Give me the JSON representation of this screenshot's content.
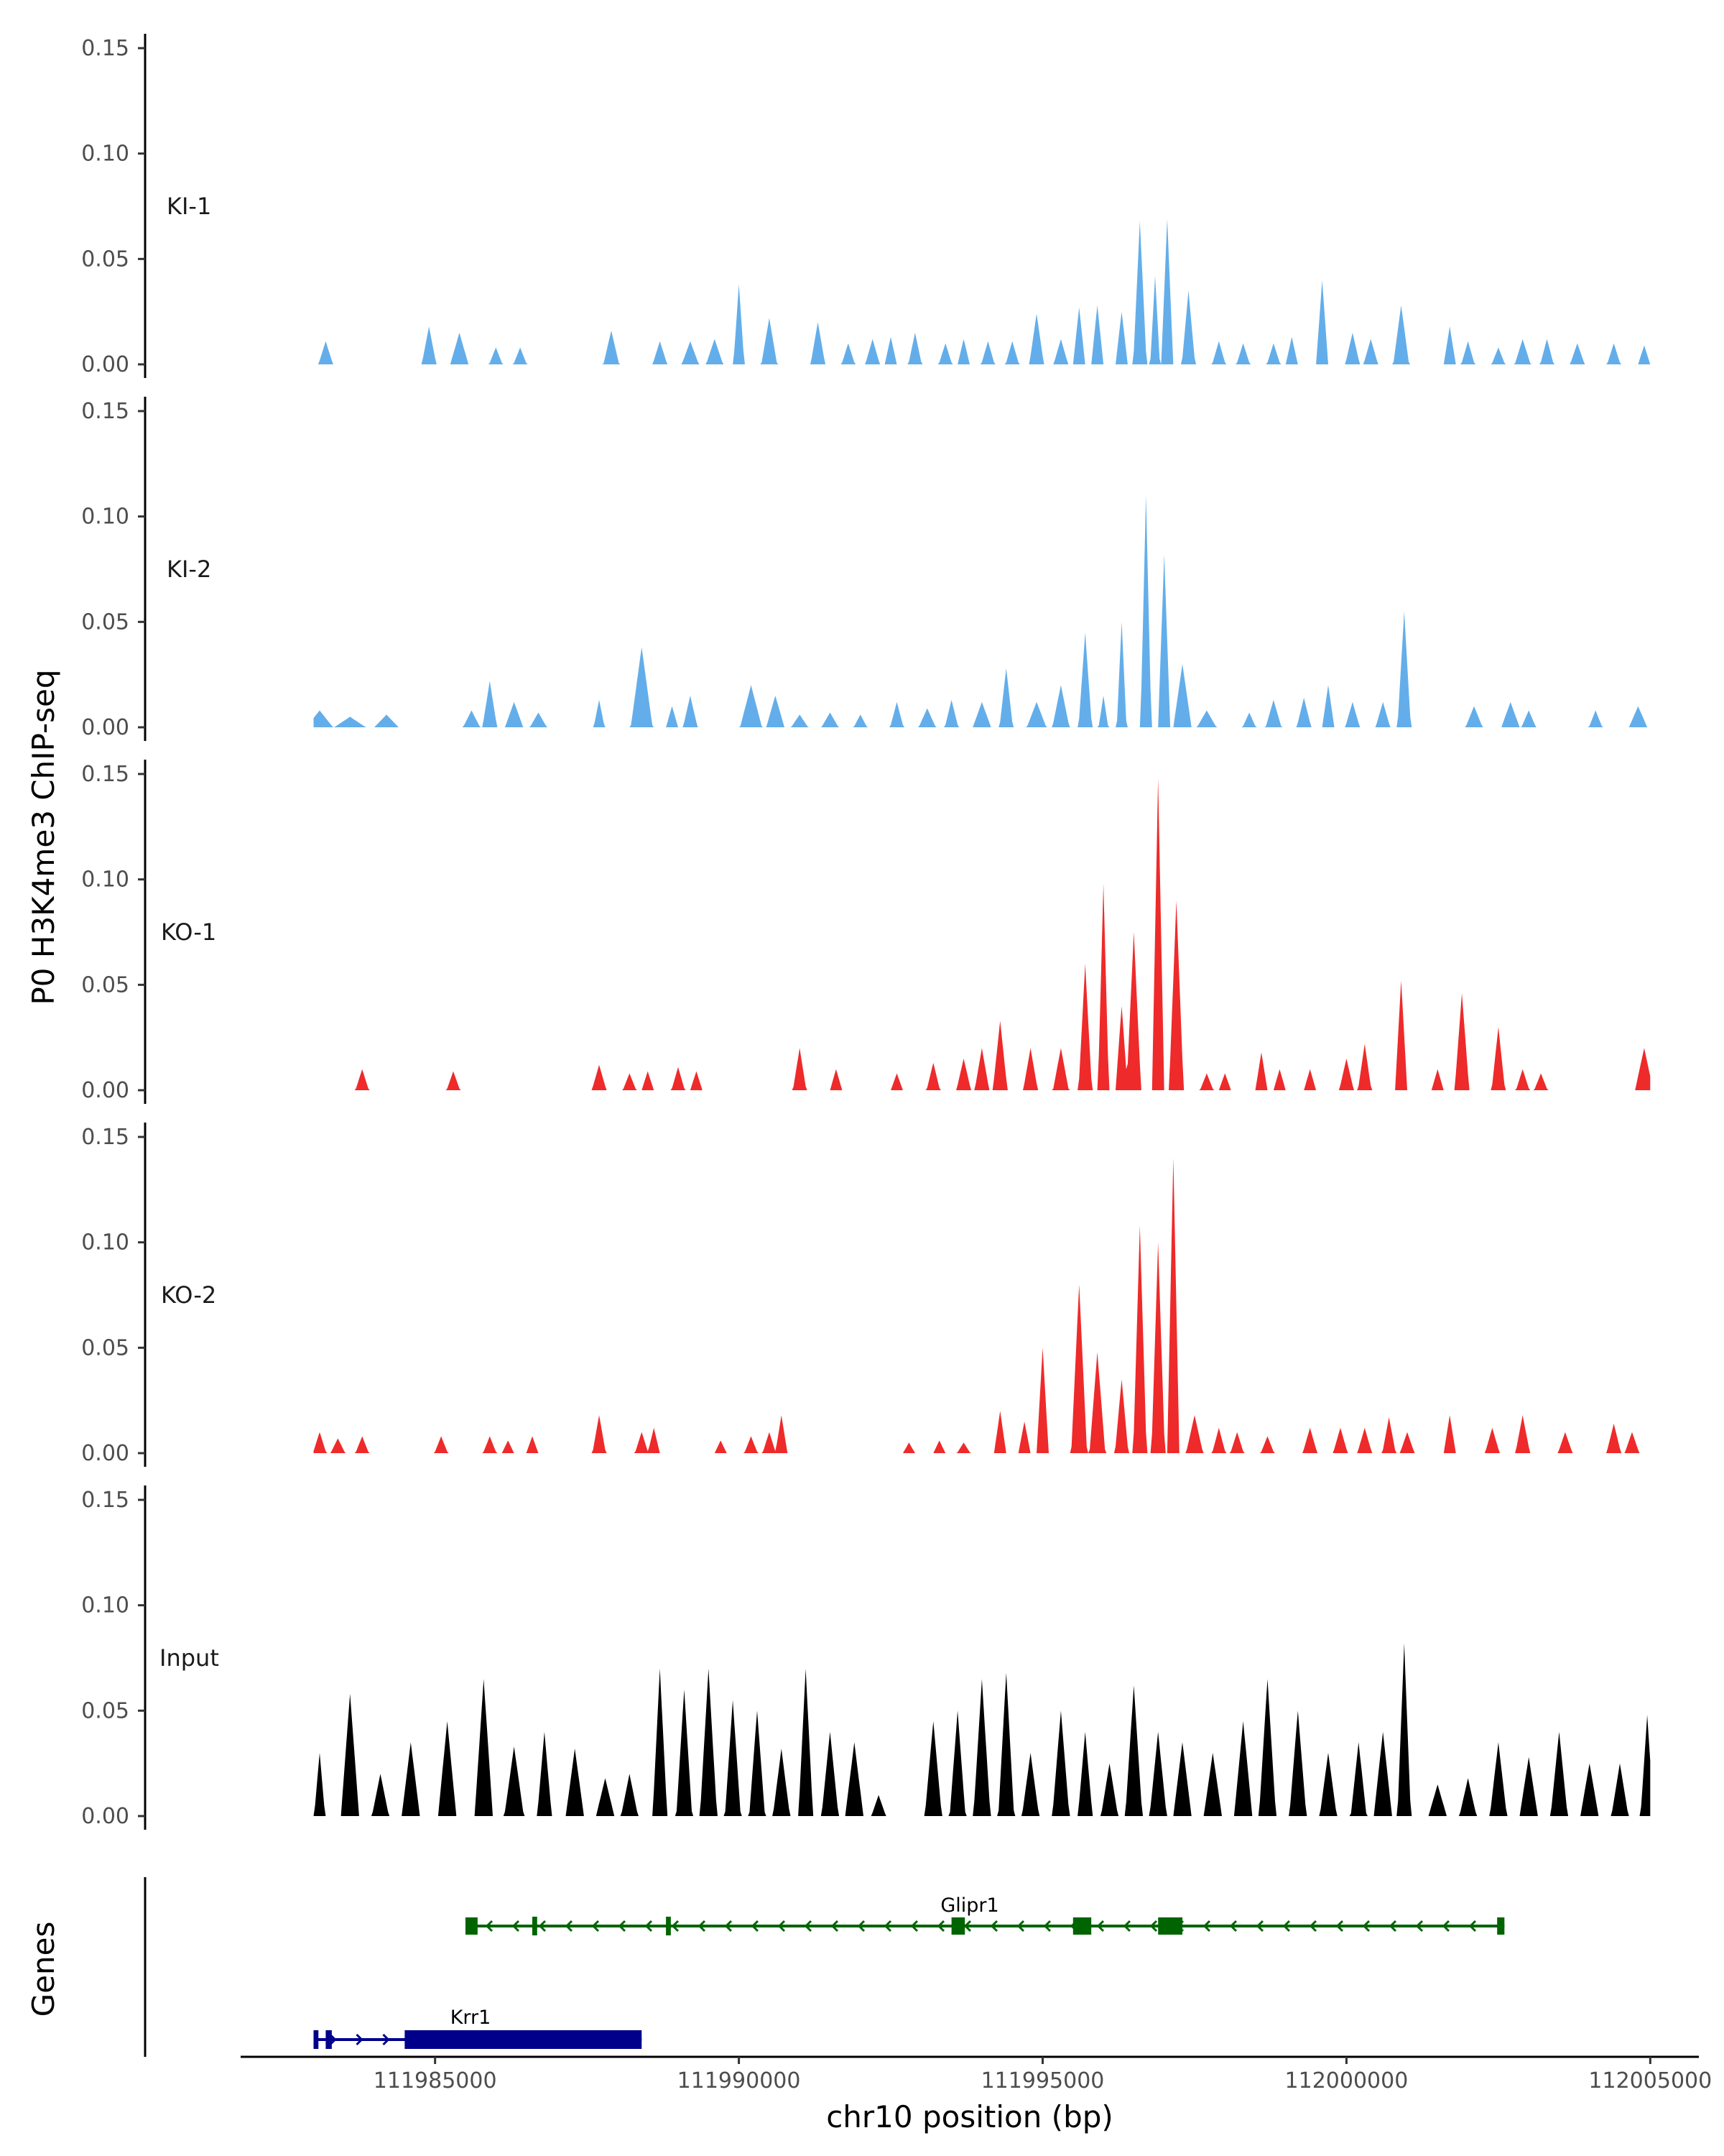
{
  "chart_data": {
    "type": "area",
    "ylabel": "P0 H3K4me3 ChIP-seq",
    "xlabel": "chr10 position (bp)",
    "xlim": [
      111981800,
      112005800
    ],
    "ylim": [
      0,
      0.15
    ],
    "y_ticks": [
      "0.00",
      "0.05",
      "0.10",
      "0.15"
    ],
    "x_ticks": [
      {
        "value": 111985000,
        "label": "111985000"
      },
      {
        "value": 111990000,
        "label": "111990000"
      },
      {
        "value": 111995000,
        "label": "111995000"
      },
      {
        "value": 112000000,
        "label": "112000000"
      },
      {
        "value": 112005000,
        "label": "112005000"
      }
    ],
    "series": [
      {
        "name": "KI-1",
        "color": "#63aeea",
        "peaks": [
          [
            111983200,
            0.011,
            120
          ],
          [
            111984900,
            0.018,
            120
          ],
          [
            111985400,
            0.015,
            150
          ],
          [
            111986000,
            0.008,
            110
          ],
          [
            111986400,
            0.008,
            110
          ],
          [
            111987900,
            0.016,
            130
          ],
          [
            111988700,
            0.011,
            120
          ],
          [
            111989200,
            0.011,
            140
          ],
          [
            111989600,
            0.012,
            140
          ],
          [
            111990000,
            0.038,
            90
          ],
          [
            111990500,
            0.022,
            130
          ],
          [
            111991300,
            0.02,
            120
          ],
          [
            111991800,
            0.01,
            110
          ],
          [
            111992200,
            0.012,
            120
          ],
          [
            111992500,
            0.013,
            100
          ],
          [
            111992900,
            0.015,
            110
          ],
          [
            111993400,
            0.01,
            110
          ],
          [
            111993700,
            0.012,
            100
          ],
          [
            111994100,
            0.011,
            110
          ],
          [
            111994500,
            0.011,
            110
          ],
          [
            111994900,
            0.024,
            120
          ],
          [
            111995300,
            0.012,
            120
          ],
          [
            111995600,
            0.027,
            100
          ],
          [
            111995900,
            0.028,
            100
          ],
          [
            111996300,
            0.025,
            100
          ],
          [
            111996600,
            0.068,
            110
          ],
          [
            111996850,
            0.042,
            80
          ],
          [
            111997050,
            0.069,
            100
          ],
          [
            111997400,
            0.035,
            110
          ],
          [
            111997900,
            0.011,
            110
          ],
          [
            111998300,
            0.01,
            110
          ],
          [
            111998800,
            0.01,
            110
          ],
          [
            111999100,
            0.013,
            100
          ],
          [
            111999600,
            0.04,
            100
          ],
          [
            112000100,
            0.015,
            120
          ],
          [
            112000400,
            0.012,
            120
          ],
          [
            112000900,
            0.028,
            130
          ],
          [
            112001700,
            0.018,
            100
          ],
          [
            112002000,
            0.011,
            110
          ],
          [
            112002500,
            0.008,
            110
          ],
          [
            112002900,
            0.012,
            130
          ],
          [
            112003300,
            0.012,
            110
          ],
          [
            112003800,
            0.01,
            120
          ],
          [
            112004400,
            0.01,
            110
          ],
          [
            112004900,
            0.009,
            100
          ]
        ]
      },
      {
        "name": "KI-2",
        "color": "#63aeea",
        "peaks": [
          [
            111983100,
            0.008,
            220
          ],
          [
            111983600,
            0.005,
            260
          ],
          [
            111984200,
            0.006,
            200
          ],
          [
            111985600,
            0.008,
            140
          ],
          [
            111985900,
            0.022,
            120
          ],
          [
            111986300,
            0.012,
            150
          ],
          [
            111986700,
            0.007,
            140
          ],
          [
            111987700,
            0.013,
            90
          ],
          [
            111988400,
            0.038,
            180
          ],
          [
            111988900,
            0.01,
            100
          ],
          [
            111989200,
            0.015,
            120
          ],
          [
            111990200,
            0.02,
            180
          ],
          [
            111990600,
            0.015,
            150
          ],
          [
            111991000,
            0.006,
            140
          ],
          [
            111991500,
            0.007,
            140
          ],
          [
            111992000,
            0.006,
            110
          ],
          [
            111992600,
            0.012,
            110
          ],
          [
            111993100,
            0.009,
            140
          ],
          [
            111993500,
            0.013,
            110
          ],
          [
            111994000,
            0.012,
            150
          ],
          [
            111994400,
            0.028,
            110
          ],
          [
            111994900,
            0.012,
            160
          ],
          [
            111995300,
            0.02,
            140
          ],
          [
            111995700,
            0.045,
            110
          ],
          [
            111996000,
            0.015,
            80
          ],
          [
            111996300,
            0.05,
            80
          ],
          [
            111996700,
            0.11,
            90
          ],
          [
            111997000,
            0.082,
            100
          ],
          [
            111997300,
            0.03,
            150
          ],
          [
            111997700,
            0.008,
            160
          ],
          [
            111998400,
            0.007,
            110
          ],
          [
            111998800,
            0.013,
            130
          ],
          [
            111999300,
            0.014,
            120
          ],
          [
            111999700,
            0.02,
            100
          ],
          [
            112000100,
            0.012,
            120
          ],
          [
            112000600,
            0.012,
            120
          ],
          [
            112000950,
            0.055,
            110
          ],
          [
            112002100,
            0.01,
            140
          ],
          [
            112002700,
            0.012,
            150
          ],
          [
            112003000,
            0.008,
            120
          ],
          [
            112004100,
            0.008,
            110
          ],
          [
            112004800,
            0.01,
            150
          ]
        ]
      },
      {
        "name": "KO-1",
        "color": "#ee2a2a",
        "peaks": [
          [
            111983800,
            0.01,
            110
          ],
          [
            111985300,
            0.009,
            110
          ],
          [
            111987700,
            0.012,
            120
          ],
          [
            111988200,
            0.008,
            110
          ],
          [
            111988500,
            0.009,
            100
          ],
          [
            111989000,
            0.011,
            110
          ],
          [
            111989300,
            0.009,
            100
          ],
          [
            111991000,
            0.02,
            110
          ],
          [
            111991600,
            0.01,
            100
          ],
          [
            111992600,
            0.008,
            100
          ],
          [
            111993200,
            0.013,
            110
          ],
          [
            111993700,
            0.015,
            120
          ],
          [
            111994000,
            0.02,
            120
          ],
          [
            111994300,
            0.033,
            120
          ],
          [
            111994800,
            0.02,
            120
          ],
          [
            111995300,
            0.02,
            130
          ],
          [
            111995700,
            0.06,
            110
          ],
          [
            111996000,
            0.098,
            90
          ],
          [
            111996300,
            0.04,
            100
          ],
          [
            111996500,
            0.075,
            120
          ],
          [
            111996900,
            0.148,
            100
          ],
          [
            111997200,
            0.09,
            120
          ],
          [
            111997700,
            0.008,
            110
          ],
          [
            111998000,
            0.008,
            100
          ],
          [
            111998600,
            0.018,
            100
          ],
          [
            111998900,
            0.01,
            100
          ],
          [
            111999400,
            0.01,
            100
          ],
          [
            112000000,
            0.015,
            120
          ],
          [
            112000300,
            0.022,
            110
          ],
          [
            112000900,
            0.052,
            100
          ],
          [
            112001500,
            0.01,
            100
          ],
          [
            112001900,
            0.046,
            120
          ],
          [
            112002500,
            0.03,
            110
          ],
          [
            112002900,
            0.01,
            110
          ],
          [
            112003200,
            0.008,
            110
          ],
          [
            112004900,
            0.02,
            150
          ]
        ]
      },
      {
        "name": "KO-2",
        "color": "#ee2a2a",
        "peaks": [
          [
            111983100,
            0.01,
            110
          ],
          [
            111983400,
            0.007,
            120
          ],
          [
            111983800,
            0.008,
            110
          ],
          [
            111985100,
            0.008,
            110
          ],
          [
            111985900,
            0.008,
            110
          ],
          [
            111986200,
            0.006,
            100
          ],
          [
            111986600,
            0.008,
            100
          ],
          [
            111987700,
            0.018,
            110
          ],
          [
            111988400,
            0.01,
            110
          ],
          [
            111988600,
            0.012,
            100
          ],
          [
            111989700,
            0.006,
            100
          ],
          [
            111990200,
            0.008,
            110
          ],
          [
            111990500,
            0.01,
            110
          ],
          [
            111990700,
            0.018,
            100
          ],
          [
            111992800,
            0.005,
            100
          ],
          [
            111993300,
            0.006,
            100
          ],
          [
            111993700,
            0.005,
            110
          ],
          [
            111994300,
            0.02,
            100
          ],
          [
            111994700,
            0.015,
            100
          ],
          [
            111995000,
            0.05,
            100
          ],
          [
            111995600,
            0.08,
            130
          ],
          [
            111995900,
            0.048,
            130
          ],
          [
            111996300,
            0.035,
            110
          ],
          [
            111996600,
            0.108,
            110
          ],
          [
            111996900,
            0.1,
            110
          ],
          [
            111997150,
            0.14,
            100
          ],
          [
            111997500,
            0.018,
            140
          ],
          [
            111997900,
            0.012,
            110
          ],
          [
            111998200,
            0.01,
            110
          ],
          [
            111998700,
            0.008,
            110
          ],
          [
            111999400,
            0.012,
            120
          ],
          [
            111999900,
            0.012,
            120
          ],
          [
            112000300,
            0.012,
            120
          ],
          [
            112000700,
            0.017,
            110
          ],
          [
            112001000,
            0.01,
            120
          ],
          [
            112001700,
            0.018,
            100
          ],
          [
            112002400,
            0.012,
            120
          ],
          [
            112002900,
            0.018,
            120
          ],
          [
            112003600,
            0.01,
            120
          ],
          [
            112004400,
            0.014,
            120
          ],
          [
            112004700,
            0.01,
            120
          ]
        ]
      },
      {
        "name": "Input",
        "color": "#000000",
        "peaks": [
          [
            111983100,
            0.03,
            90
          ],
          [
            111983600,
            0.058,
            150
          ],
          [
            111984100,
            0.02,
            140
          ],
          [
            111984600,
            0.035,
            150
          ],
          [
            111985200,
            0.045,
            150
          ],
          [
            111985800,
            0.065,
            150
          ],
          [
            111986300,
            0.033,
            160
          ],
          [
            111986800,
            0.04,
            120
          ],
          [
            111987300,
            0.032,
            150
          ],
          [
            111987800,
            0.018,
            150
          ],
          [
            111988200,
            0.02,
            140
          ],
          [
            111988700,
            0.07,
            120
          ],
          [
            111989100,
            0.06,
            130
          ],
          [
            111989500,
            0.07,
            140
          ],
          [
            111989900,
            0.055,
            130
          ],
          [
            111990300,
            0.05,
            130
          ],
          [
            111990700,
            0.032,
            140
          ],
          [
            111991100,
            0.07,
            120
          ],
          [
            111991500,
            0.04,
            140
          ],
          [
            111991900,
            0.035,
            150
          ],
          [
            111992300,
            0.01,
            120
          ],
          [
            111993200,
            0.045,
            140
          ],
          [
            111993600,
            0.05,
            130
          ],
          [
            111994000,
            0.065,
            140
          ],
          [
            111994400,
            0.068,
            130
          ],
          [
            111994800,
            0.03,
            140
          ],
          [
            111995300,
            0.05,
            140
          ],
          [
            111995700,
            0.04,
            120
          ],
          [
            111996100,
            0.025,
            140
          ],
          [
            111996500,
            0.062,
            140
          ],
          [
            111996900,
            0.04,
            140
          ],
          [
            111997300,
            0.035,
            150
          ],
          [
            111997800,
            0.03,
            150
          ],
          [
            111998300,
            0.045,
            150
          ],
          [
            111998700,
            0.065,
            140
          ],
          [
            111999200,
            0.05,
            140
          ],
          [
            111999700,
            0.03,
            140
          ],
          [
            112000200,
            0.035,
            130
          ],
          [
            112000600,
            0.04,
            150
          ],
          [
            112000950,
            0.082,
            110
          ],
          [
            112001500,
            0.015,
            150
          ],
          [
            112002000,
            0.018,
            140
          ],
          [
            112002500,
            0.035,
            140
          ],
          [
            112003000,
            0.028,
            150
          ],
          [
            112003500,
            0.04,
            140
          ],
          [
            112004000,
            0.025,
            150
          ],
          [
            112004500,
            0.025,
            140
          ],
          [
            112004950,
            0.048,
            110
          ]
        ]
      }
    ],
    "genes_track": {
      "label": "Genes",
      "genes": [
        {
          "name": "Glipr1",
          "color": "#006400",
          "strand": "-",
          "start": 111985500,
          "end": 112002600,
          "exons": [
            [
              111985500,
              111985700
            ],
            [
              111986600,
              111986680
            ],
            [
              111988800,
              111988880
            ],
            [
              111993500,
              111993720
            ],
            [
              111995500,
              111995800
            ],
            [
              111996900,
              111997300
            ],
            [
              112002480,
              112002600
            ]
          ]
        },
        {
          "name": "Krr1",
          "color": "#00008b",
          "strand": "+",
          "start": 111983000,
          "end": 111988400,
          "exons": [
            [
              111983000,
              111983080
            ],
            [
              111983200,
              111983300
            ],
            [
              111984500,
              111988400
            ]
          ]
        }
      ]
    }
  }
}
